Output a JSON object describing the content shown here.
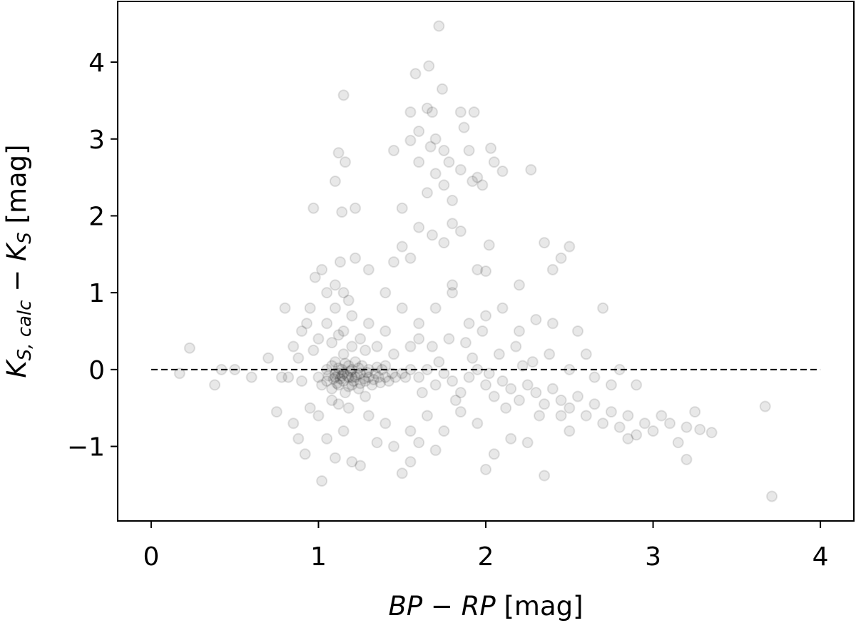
{
  "chart_data": {
    "type": "scatter",
    "xlabel": [
      {
        "text": "BP",
        "italic": true
      },
      {
        "text": " − ",
        "italic": false
      },
      {
        "text": "RP",
        "italic": true
      },
      {
        "text": " [mag]",
        "italic": false
      }
    ],
    "ylabel": [
      {
        "text": "K",
        "italic": true
      },
      {
        "text": "S, calc",
        "italic": true,
        "sub": true
      },
      {
        "text": " − ",
        "italic": false
      },
      {
        "text": "K",
        "italic": true
      },
      {
        "text": "S",
        "italic": true,
        "sub": true
      },
      {
        "text": " [mag]",
        "italic": false
      }
    ],
    "xlim": [
      -0.2,
      4.2
    ],
    "ylim": [
      -1.97,
      4.79
    ],
    "xticks": [
      0,
      1,
      2,
      3,
      4
    ],
    "yticks": [
      {
        "value": -1,
        "label": "−1"
      },
      0,
      1,
      2,
      3,
      4
    ],
    "color": "#000000",
    "alpha": 0.09,
    "reference_line": {
      "y": 0,
      "x": [
        0,
        4
      ],
      "style": "dashed"
    },
    "x": [
      1.0,
      1.02,
      1.05,
      1.05,
      1.08,
      1.08,
      1.1,
      1.1,
      1.12,
      1.12,
      1.14,
      1.15,
      1.15,
      1.16,
      1.18,
      1.18,
      1.2,
      1.2,
      1.22,
      1.22,
      1.24,
      1.25,
      1.26,
      1.28,
      1.3,
      1.3,
      1.32,
      1.34,
      1.36,
      1.38,
      1.4,
      1.42,
      1.44,
      1.46,
      1.5,
      1.52,
      1.55,
      1.1,
      1.13,
      1.17,
      1.21,
      1.19,
      1.23,
      1.27,
      1.11,
      1.14,
      1.16,
      1.09,
      1.06,
      1.25,
      1.29,
      1.33,
      1.35,
      1.37,
      1.4,
      1.18,
      1.2,
      1.15,
      1.12,
      1.24,
      1.0,
      1.05,
      1.1,
      1.1,
      1.15,
      1.15,
      1.2,
      1.2,
      1.25,
      1.3,
      1.3,
      0.95,
      0.98,
      1.02,
      1.08,
      1.12,
      1.18,
      1.22,
      1.28,
      1.35,
      1.4,
      1.45,
      0.9,
      0.85,
      1.05,
      1.13,
      1.4,
      1.5,
      1.6,
      1.55,
      1.0,
      1.05,
      1.1,
      1.15,
      1.2,
      1.25,
      1.3,
      1.35,
      0.95,
      0.92,
      1.02,
      1.08,
      1.18,
      1.4,
      1.45,
      1.5,
      1.55,
      0.88,
      1.12,
      1.28,
      0.17,
      0.23,
      0.38,
      0.42,
      0.5,
      0.6,
      0.7,
      0.75,
      0.78,
      0.8,
      0.82,
      0.85,
      0.88,
      0.9,
      0.93,
      0.97,
      0.97,
      1.6,
      1.65,
      1.7,
      1.75,
      1.8,
      1.85,
      1.9,
      1.95,
      2.0,
      2.05,
      2.1,
      2.15,
      2.2,
      2.25,
      2.3,
      2.35,
      2.4,
      1.62,
      1.72,
      1.82,
      1.92,
      2.02,
      2.12,
      2.22,
      2.32,
      1.68,
      1.78,
      1.88,
      1.98,
      2.08,
      2.18,
      2.28,
      2.38,
      1.6,
      1.7,
      1.8,
      1.9,
      2.0,
      2.1,
      2.2,
      2.3,
      2.4,
      1.65,
      1.75,
      1.85,
      1.95,
      2.05,
      2.15,
      2.25,
      2.35,
      2.0,
      1.7,
      1.55,
      1.6,
      2.45,
      2.45,
      2.5,
      2.55,
      2.6,
      2.65,
      2.7,
      2.75,
      2.8,
      2.85,
      2.9,
      2.95,
      3.0,
      2.5,
      2.6,
      2.7,
      2.55,
      2.65,
      2.8,
      2.9,
      2.5,
      2.75,
      2.85,
      3.05,
      3.1,
      3.15,
      3.2,
      3.25,
      3.28,
      3.35,
      3.2,
      3.67,
      3.71,
      2.45,
      2.5,
      2.35,
      2.4,
      1.72,
      1.58,
      1.66,
      1.74,
      1.15,
      1.65,
      1.68,
      1.55,
      1.85,
      1.93,
      1.6,
      1.87,
      1.7,
      1.55,
      1.45,
      1.67,
      1.75,
      1.9,
      2.03,
      1.12,
      1.16,
      1.6,
      1.7,
      1.78,
      1.85,
      1.95,
      2.05,
      2.1,
      2.27,
      1.1,
      1.65,
      1.75,
      1.8,
      1.92,
      1.98,
      1.14,
      1.22,
      1.5,
      1.8,
      2.02,
      1.6,
      1.68,
      1.75,
      1.85,
      1.5,
      1.45,
      1.55,
      1.95,
      2.0,
      1.8,
      2.2
    ],
    "y": [
      -0.1,
      -0.2,
      0.0,
      -0.15,
      -0.25,
      0.05,
      -0.1,
      0.1,
      -0.2,
      -0.05,
      0.0,
      -0.15,
      0.2,
      -0.3,
      -0.1,
      0.05,
      -0.2,
      0.0,
      -0.1,
      0.1,
      -0.25,
      -0.05,
      0.05,
      -0.15,
      -0.1,
      0.0,
      -0.2,
      -0.05,
      -0.1,
      0.0,
      -0.1,
      -0.15,
      -0.05,
      -0.1,
      -0.05,
      -0.1,
      0.0,
      -0.05,
      -0.12,
      -0.08,
      -0.15,
      -0.02,
      -0.07,
      -0.12,
      -0.18,
      -0.08,
      0.08,
      -0.12,
      -0.08,
      -0.18,
      -0.04,
      -0.13,
      0.03,
      -0.17,
      0.05,
      -0.22,
      -0.1,
      -0.05,
      0.02,
      0.02,
      0.4,
      0.6,
      0.8,
      1.1,
      1.0,
      0.5,
      0.3,
      0.7,
      0.4,
      0.6,
      1.3,
      0.8,
      1.2,
      1.3,
      0.35,
      0.45,
      0.9,
      1.45,
      0.25,
      0.3,
      0.5,
      0.2,
      0.5,
      0.3,
      1.0,
      1.4,
      1.0,
      0.8,
      0.4,
      0.3,
      -0.6,
      -0.9,
      -1.15,
      -0.8,
      -1.2,
      -1.25,
      -0.6,
      -0.95,
      -0.5,
      -1.1,
      -1.45,
      -0.4,
      -0.5,
      -0.7,
      -1.0,
      -1.35,
      -0.8,
      -0.9,
      -0.45,
      -0.35,
      -0.05,
      0.28,
      -0.2,
      0.0,
      0.0,
      -0.1,
      0.15,
      -0.55,
      -0.1,
      0.8,
      -0.1,
      -0.7,
      0.15,
      -0.15,
      0.6,
      0.25,
      2.1,
      -0.1,
      0.0,
      -0.2,
      -0.05,
      -0.15,
      -0.3,
      -0.1,
      0.0,
      -0.2,
      -0.35,
      -0.15,
      -0.25,
      -0.4,
      -0.2,
      -0.3,
      -0.45,
      -0.25,
      -0.3,
      0.1,
      -0.4,
      0.15,
      -0.05,
      -0.5,
      0.05,
      -0.6,
      0.3,
      0.4,
      0.35,
      0.5,
      0.2,
      0.3,
      0.1,
      0.2,
      0.6,
      0.8,
      1.0,
      0.6,
      0.7,
      0.8,
      0.5,
      0.65,
      0.6,
      -0.6,
      -0.8,
      -0.55,
      -0.7,
      -1.1,
      -0.9,
      -0.95,
      -1.38,
      -1.3,
      -1.05,
      -1.2,
      -0.95,
      -0.6,
      -0.4,
      -0.5,
      -0.35,
      -0.6,
      -0.45,
      -0.7,
      -0.55,
      -0.75,
      -0.6,
      -0.85,
      -0.7,
      -0.8,
      0.0,
      0.2,
      0.8,
      0.5,
      -0.1,
      0.0,
      -0.2,
      -0.8,
      -0.2,
      -0.9,
      -0.6,
      -0.7,
      -0.95,
      -0.75,
      -0.55,
      -0.78,
      -0.82,
      -1.17,
      -0.48,
      -1.65,
      1.45,
      1.6,
      1.65,
      1.3,
      4.47,
      3.85,
      3.95,
      3.65,
      3.57,
      3.4,
      3.35,
      3.35,
      3.35,
      3.35,
      3.1,
      3.15,
      3.0,
      2.98,
      2.85,
      2.9,
      2.85,
      2.85,
      2.88,
      2.82,
      2.7,
      2.7,
      2.55,
      2.7,
      2.6,
      2.5,
      2.7,
      2.58,
      2.6,
      2.45,
      2.3,
      2.4,
      2.2,
      2.45,
      2.4,
      2.05,
      2.1,
      2.1,
      1.9,
      1.62,
      1.85,
      1.75,
      1.65,
      1.8,
      1.6,
      1.4,
      1.45,
      1.3,
      1.28,
      1.1,
      1.1
    ]
  }
}
